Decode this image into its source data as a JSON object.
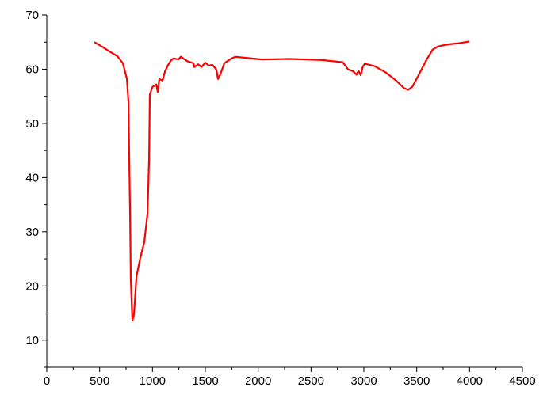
{
  "chart_data": {
    "type": "line",
    "title": "",
    "xlabel": "",
    "ylabel": "",
    "xlim": [
      0,
      4500
    ],
    "ylim": [
      5,
      70
    ],
    "x_ticks": [
      0,
      500,
      1000,
      1500,
      2000,
      2500,
      3000,
      3500,
      4000,
      4500
    ],
    "y_ticks": [
      10,
      20,
      30,
      40,
      50,
      60,
      70
    ],
    "grid": false,
    "line_color": "#ff0000",
    "series": [
      {
        "x": [
          450,
          520,
          600,
          668,
          720,
          758,
          773,
          780,
          788,
          795,
          810,
          825,
          848,
          878,
          923,
          953,
          968,
          975,
          998,
          1035,
          1050,
          1065,
          1095,
          1118,
          1148,
          1178,
          1200,
          1245,
          1268,
          1328,
          1388,
          1395,
          1433,
          1463,
          1500,
          1530,
          1568,
          1605,
          1620,
          1643,
          1680,
          1710,
          1748,
          1785,
          1883,
          2033,
          2300,
          2600,
          2800,
          2850,
          2900,
          2930,
          2950,
          2970,
          2990,
          3010,
          3100,
          3200,
          3300,
          3380,
          3420,
          3460,
          3520,
          3600,
          3650,
          3700,
          3800,
          3900,
          4000
        ],
        "y": [
          65.0,
          64.2,
          63.2,
          62.4,
          61.1,
          58.2,
          53.8,
          43.6,
          33.4,
          21.2,
          13.6,
          14.7,
          21.7,
          24.6,
          28.2,
          33.4,
          43.6,
          55.3,
          56.7,
          57.2,
          55.8,
          58.2,
          57.9,
          59.6,
          60.8,
          61.7,
          62.0,
          61.8,
          62.3,
          61.5,
          61.1,
          60.4,
          60.9,
          60.4,
          61.2,
          60.7,
          60.8,
          59.9,
          58.2,
          59.1,
          61.1,
          61.5,
          62.0,
          62.3,
          62.1,
          61.8,
          61.9,
          61.7,
          61.3,
          60.0,
          59.6,
          59.0,
          59.7,
          58.9,
          60.5,
          61.0,
          60.6,
          59.5,
          58.0,
          56.5,
          56.2,
          56.8,
          59.0,
          62.0,
          63.6,
          64.2,
          64.6,
          64.8,
          65.1
        ]
      }
    ]
  }
}
